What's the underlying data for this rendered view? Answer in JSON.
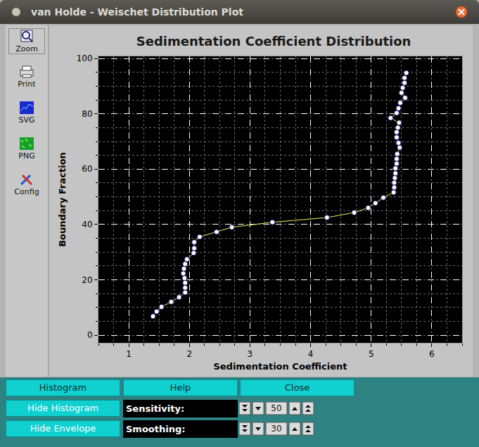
{
  "window": {
    "title": "van Holde - Weischet Distribution Plot",
    "toolbar": [
      "Zoom",
      "Print",
      "SVG",
      "PNG",
      "Config"
    ],
    "buttons": [
      "Histogram",
      "Help",
      "Close",
      "Hide Histogram",
      "Hide Envelope"
    ],
    "controls": [
      {
        "label": "Sensitivity:",
        "value": 50
      },
      {
        "label": "Smoothing:",
        "value": 30
      }
    ]
  },
  "chart_data": {
    "type": "scatter",
    "title": "Sedimentation Coefficient Distribution",
    "x_label": "Sedimentation Coefficient",
    "y_label": "Boundary Fraction",
    "x": [
      1.4,
      1.46,
      1.54,
      1.7,
      1.83,
      1.93,
      1.93,
      1.93,
      1.92,
      1.9,
      1.91,
      1.93,
      1.96,
      2.07,
      2.08,
      2.08,
      2.17,
      2.45,
      2.7,
      3.37,
      4.27,
      4.72,
      4.95,
      5.07,
      5.2,
      5.37,
      5.38,
      5.38,
      5.39,
      5.4,
      5.4,
      5.42,
      5.42,
      5.43,
      5.47,
      5.45,
      5.42,
      5.42,
      5.44,
      5.46,
      5.32,
      5.42,
      5.45,
      5.48,
      5.56,
      5.5,
      5.52,
      5.55,
      5.55,
      5.58
    ],
    "values": [
      6.8,
      8.5,
      10.2,
      12.0,
      13.7,
      15.4,
      17.1,
      18.9,
      20.6,
      22.3,
      24.0,
      25.7,
      27.4,
      29.7,
      31.4,
      33.6,
      35.5,
      37.3,
      39.0,
      40.8,
      42.5,
      44.3,
      46.0,
      47.7,
      49.7,
      51.6,
      53.4,
      55.1,
      56.8,
      58.5,
      60.3,
      62.0,
      63.7,
      65.5,
      67.8,
      69.5,
      71.5,
      73.4,
      75.0,
      76.8,
      78.5,
      80.3,
      82.0,
      84.0,
      85.8,
      87.6,
      89.4,
      91.2,
      93.0,
      94.8
    ],
    "color": "#f0f060",
    "marker": "circle",
    "line_style": "solid",
    "xlim": [
      0.5,
      6.5
    ],
    "ylim": [
      -2.8,
      100.8
    ],
    "xticks": [
      1,
      2,
      3,
      4,
      5,
      6
    ],
    "yticks": [
      0,
      20,
      40,
      60,
      80,
      100
    ],
    "grid": true
  }
}
